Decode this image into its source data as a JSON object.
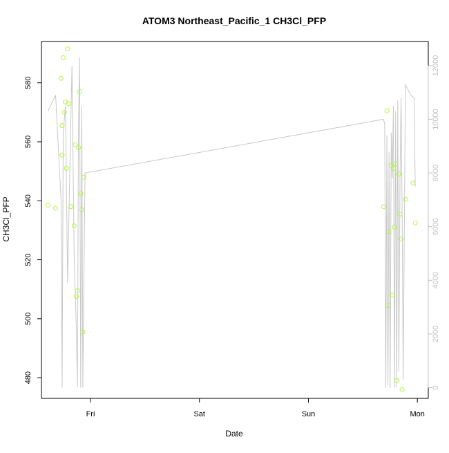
{
  "chart_data": {
    "type": "scatter",
    "title": "ATOM3 Northeast_Pacific_1 CH3Cl_PFP",
    "xlabel": "Date",
    "ylabel": "CH3Cl_PFP",
    "x_ticks": [
      "Fri",
      "Sat",
      "Sun",
      "Mon"
    ],
    "x_tick_positions": [
      1.0,
      2.0,
      3.0,
      4.0
    ],
    "xlim": [
      0.55,
      4.1
    ],
    "y_ticks": [
      480,
      500,
      520,
      540,
      560,
      580
    ],
    "ylim": [
      473,
      594
    ],
    "y2_ticks": [
      0,
      2000,
      4000,
      6000,
      8000,
      10000,
      12000
    ],
    "y2lim": [
      -400,
      12900
    ],
    "grid": false,
    "colors": {
      "points": "#b3f542",
      "line": "#c8c8c8",
      "axis": "#000000",
      "right_axis": "#c0c0c0"
    },
    "series": [
      {
        "axis": "left",
        "style": "points",
        "x": [
          0.61,
          0.68,
          0.73,
          0.74,
          0.74,
          0.75,
          0.76,
          0.77,
          0.78,
          0.79,
          0.8,
          0.82,
          0.85,
          0.86,
          0.87,
          0.88,
          0.89,
          0.9,
          0.91,
          0.92,
          0.93,
          0.94,
          3.69,
          3.72,
          3.73,
          3.74,
          3.76,
          3.77,
          3.78,
          3.79,
          3.8,
          3.81,
          3.83,
          3.84,
          3.85,
          3.86,
          3.89,
          3.96,
          3.98
        ],
        "y": [
          538.5,
          537.5,
          581.5,
          555.5,
          565.5,
          588.5,
          570,
          573.5,
          551,
          591.5,
          573,
          538,
          531.5,
          559,
          507.5,
          509.5,
          558,
          577,
          542.5,
          537,
          495.5,
          548,
          538,
          570.5,
          504.5,
          529.5,
          552,
          508,
          551,
          531,
          552.5,
          479,
          549,
          535.5,
          527,
          476,
          540.5,
          546,
          532.5
        ]
      },
      {
        "axis": "right",
        "style": "line",
        "x": [
          0.61,
          0.68,
          0.73,
          0.74,
          0.75,
          0.77,
          0.79,
          0.81,
          0.83,
          0.85,
          0.87,
          0.88,
          0.89,
          0.9,
          0.91,
          0.92,
          0.93,
          0.95,
          3.69,
          3.7,
          3.71,
          3.72,
          3.73,
          3.74,
          3.75,
          3.76,
          3.77,
          3.78,
          3.79,
          3.8,
          3.81,
          3.82,
          3.83,
          3.84,
          3.85,
          3.86,
          3.87,
          3.89,
          3.9,
          3.94,
          3.97,
          3.98
        ],
        "y": [
          10300,
          10900,
          7000,
          0,
          9500,
          10500,
          3900,
          8000,
          12000,
          5000,
          2200,
          0,
          9700,
          12300,
          0,
          10500,
          0,
          8000,
          10000,
          9800,
          0,
          9400,
          100,
          8800,
          0,
          9500,
          7800,
          10500,
          0,
          10300,
          0,
          10700,
          600,
          7700,
          10800,
          6700,
          300,
          11300,
          11200,
          10900,
          10800,
          7500
        ]
      }
    ]
  }
}
